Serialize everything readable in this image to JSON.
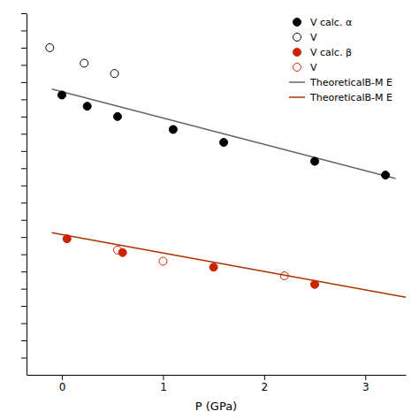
{
  "chart_data": {
    "type": "scatter",
    "xlabel": "P (GPa)",
    "xlim": [
      -0.35,
      3.4
    ],
    "ylim": [
      68,
      110
    ],
    "xticks": [
      0,
      1,
      2,
      3
    ],
    "yticks": [
      70,
      72,
      74,
      76,
      78,
      80,
      82,
      84,
      86,
      88,
      90,
      92,
      94,
      96,
      98,
      100,
      102,
      104,
      106,
      108,
      110
    ],
    "tick_labels": "x",
    "grid": false,
    "legend": "upper right",
    "series": [
      {
        "name": "V calc. α",
        "type": "scatter",
        "marker": "circle",
        "color": "#000000",
        "x": [
          0.0,
          0.25,
          0.55,
          1.1,
          1.6,
          2.5,
          3.2
        ],
        "values": [
          100.5,
          99.2,
          98.0,
          96.5,
          95.0,
          92.8,
          91.2
        ]
      },
      {
        "name": "V",
        "type": "scatter",
        "marker": "circle-open",
        "color": "#000000",
        "x": [
          -0.12,
          0.22,
          0.52
        ],
        "values": [
          106.0,
          104.2,
          103.0
        ]
      },
      {
        "name": "V calc. β",
        "type": "scatter",
        "marker": "circle",
        "color": "#cc2200",
        "x": [
          0.05,
          0.6,
          1.5,
          2.5
        ],
        "values": [
          83.8,
          82.2,
          80.5,
          78.5
        ]
      },
      {
        "name": "V",
        "type": "scatter",
        "marker": "circle-open",
        "color": "#cc2200",
        "x": [
          0.55,
          1.0,
          2.2
        ],
        "values": [
          82.5,
          81.2,
          79.5
        ]
      },
      {
        "name": "TheoreticalB-M E",
        "type": "line",
        "color": "#666666",
        "x": [
          -0.1,
          3.3
        ],
        "values": [
          101.2,
          90.8
        ]
      },
      {
        "name": "TheoreticalB-M E",
        "type": "line",
        "color": "#aa3300",
        "x": [
          -0.1,
          3.4
        ],
        "values": [
          84.5,
          77.0
        ]
      }
    ]
  }
}
